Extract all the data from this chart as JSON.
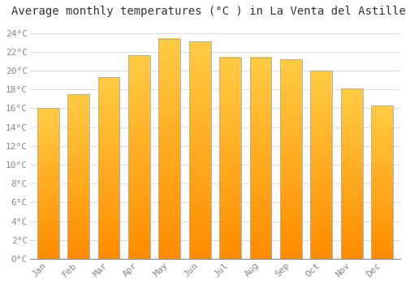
{
  "title": "Average monthly temperatures (°C ) in La Venta del Astillero",
  "months": [
    "Jan",
    "Feb",
    "Mar",
    "Apr",
    "May",
    "Jun",
    "Jul",
    "Aug",
    "Sep",
    "Oct",
    "Nov",
    "Dec"
  ],
  "values": [
    16.0,
    17.5,
    19.3,
    21.6,
    23.4,
    23.1,
    21.4,
    21.4,
    21.2,
    20.0,
    18.1,
    16.3
  ],
  "bar_color_top": "#FFCC44",
  "bar_color_bottom": "#FF8C00",
  "bar_edge_color": "#AAAAAA",
  "background_color": "#FFFFFF",
  "grid_color": "#DDDDDD",
  "ylim": [
    0,
    25
  ],
  "ytick_step": 2,
  "title_fontsize": 10,
  "tick_fontsize": 8,
  "tick_color": "#888888"
}
